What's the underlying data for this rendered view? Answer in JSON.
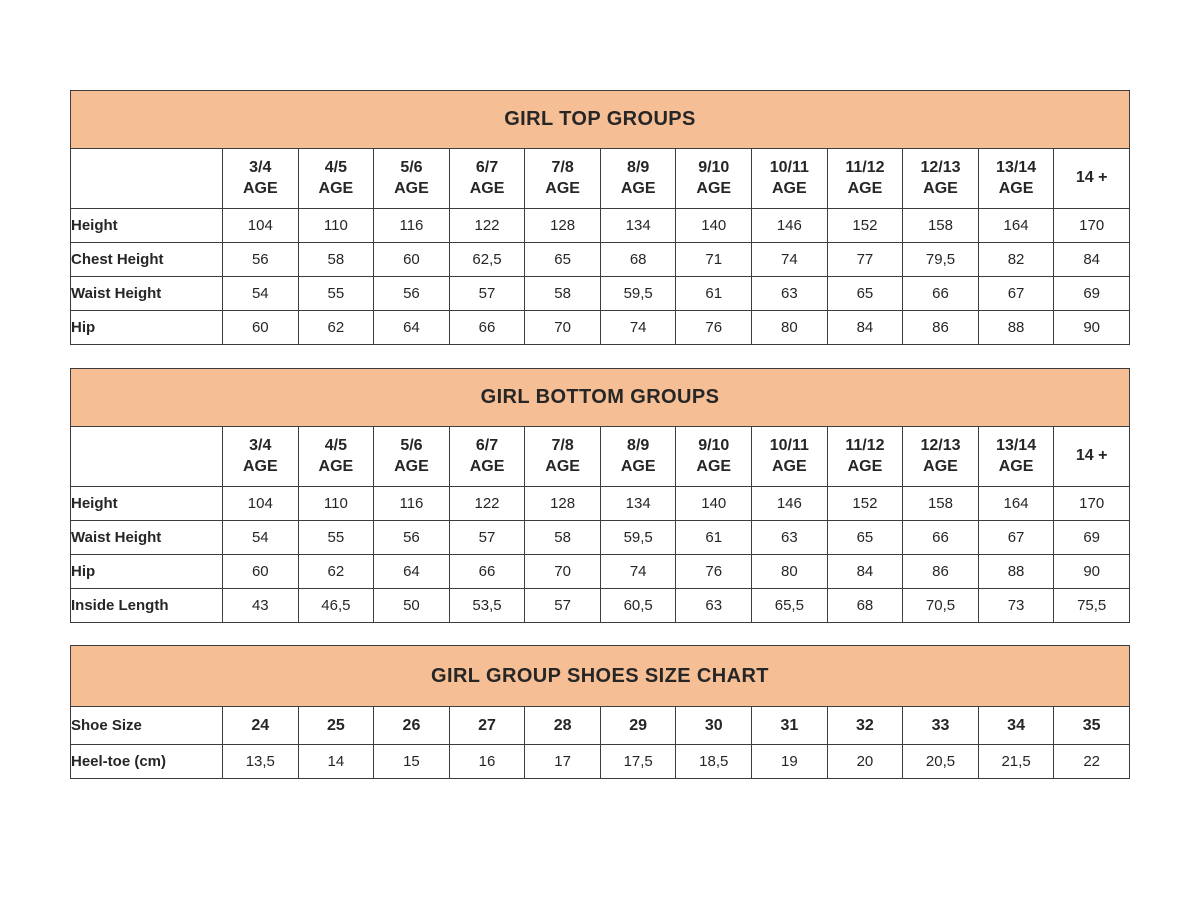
{
  "theme": {
    "header_bg": "#f6be94",
    "border_color": "#3d3d3d",
    "text_color": "#262626",
    "page_bg": "#ffffff"
  },
  "tables": [
    {
      "id": "girl-top-groups",
      "title": "GIRL TOP GROUPS",
      "columns": [
        {
          "top": "3/4",
          "bottom": "AGE"
        },
        {
          "top": "4/5",
          "bottom": "AGE"
        },
        {
          "top": "5/6",
          "bottom": "AGE"
        },
        {
          "top": "6/7",
          "bottom": "AGE"
        },
        {
          "top": "7/8",
          "bottom": "AGE"
        },
        {
          "top": "8/9",
          "bottom": "AGE"
        },
        {
          "top": "9/10",
          "bottom": "AGE"
        },
        {
          "top": "10/11",
          "bottom": "AGE"
        },
        {
          "top": "11/12",
          "bottom": "AGE"
        },
        {
          "top": "12/13",
          "bottom": "AGE"
        },
        {
          "top": "13/14",
          "bottom": "AGE"
        },
        {
          "top": "14 +",
          "bottom": ""
        }
      ],
      "rows": [
        {
          "label": "Height",
          "values": [
            "104",
            "110",
            "116",
            "122",
            "128",
            "134",
            "140",
            "146",
            "152",
            "158",
            "164",
            "170"
          ]
        },
        {
          "label": "Chest Height",
          "values": [
            "56",
            "58",
            "60",
            "62,5",
            "65",
            "68",
            "71",
            "74",
            "77",
            "79,5",
            "82",
            "84"
          ]
        },
        {
          "label": "Waist Height",
          "values": [
            "54",
            "55",
            "56",
            "57",
            "58",
            "59,5",
            "61",
            "63",
            "65",
            "66",
            "67",
            "69"
          ]
        },
        {
          "label": "Hip",
          "values": [
            "60",
            "62",
            "64",
            "66",
            "70",
            "74",
            "76",
            "80",
            "84",
            "86",
            "88",
            "90"
          ]
        }
      ]
    },
    {
      "id": "girl-bottom-groups",
      "title": "GIRL BOTTOM GROUPS",
      "columns": [
        {
          "top": "3/4",
          "bottom": "AGE"
        },
        {
          "top": "4/5",
          "bottom": "AGE"
        },
        {
          "top": "5/6",
          "bottom": "AGE"
        },
        {
          "top": "6/7",
          "bottom": "AGE"
        },
        {
          "top": "7/8",
          "bottom": "AGE"
        },
        {
          "top": "8/9",
          "bottom": "AGE"
        },
        {
          "top": "9/10",
          "bottom": "AGE"
        },
        {
          "top": "10/11",
          "bottom": "AGE"
        },
        {
          "top": "11/12",
          "bottom": "AGE"
        },
        {
          "top": "12/13",
          "bottom": "AGE"
        },
        {
          "top": "13/14",
          "bottom": "AGE"
        },
        {
          "top": "14 +",
          "bottom": ""
        }
      ],
      "rows": [
        {
          "label": "Height",
          "values": [
            "104",
            "110",
            "116",
            "122",
            "128",
            "134",
            "140",
            "146",
            "152",
            "158",
            "164",
            "170"
          ]
        },
        {
          "label": "Waist Height",
          "values": [
            "54",
            "55",
            "56",
            "57",
            "58",
            "59,5",
            "61",
            "63",
            "65",
            "66",
            "67",
            "69"
          ]
        },
        {
          "label": "Hip",
          "values": [
            "60",
            "62",
            "64",
            "66",
            "70",
            "74",
            "76",
            "80",
            "84",
            "86",
            "88",
            "90"
          ]
        },
        {
          "label": "Inside Length",
          "values": [
            "43",
            "46,5",
            "50",
            "53,5",
            "57",
            "60,5",
            "63",
            "65,5",
            "68",
            "70,5",
            "73",
            "75,5"
          ]
        }
      ]
    },
    {
      "id": "girl-shoes-size-chart",
      "title": "GIRL GROUP SHOES SIZE CHART",
      "rows": [
        {
          "label": "Shoe Size",
          "bold": true,
          "values": [
            "24",
            "25",
            "26",
            "27",
            "28",
            "29",
            "30",
            "31",
            "32",
            "33",
            "34",
            "35"
          ]
        },
        {
          "label": "Heel-toe (cm)",
          "values": [
            "13,5",
            "14",
            "15",
            "16",
            "17",
            "17,5",
            "18,5",
            "19",
            "20",
            "20,5",
            "21,5",
            "22"
          ]
        }
      ]
    }
  ]
}
